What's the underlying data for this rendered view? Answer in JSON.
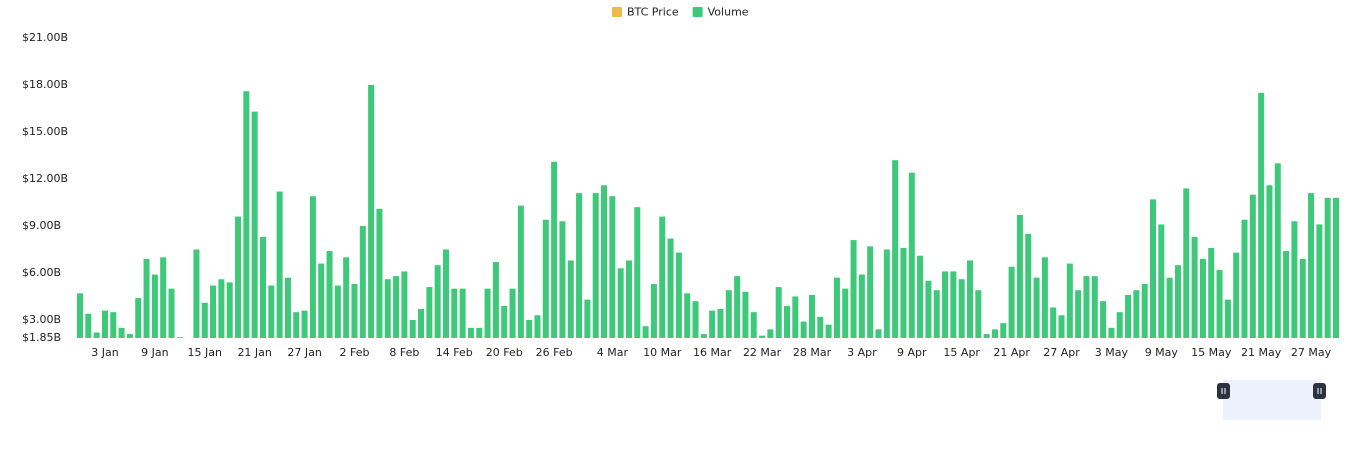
{
  "chart_data": {
    "type": "bar",
    "series": [
      {
        "name": "BTC Price",
        "color": "#f0b94a",
        "hidden": true
      },
      {
        "name": "Volume",
        "color": "#3ec87a",
        "values": [
          4.7,
          3.4,
          2.2,
          3.6,
          3.5,
          2.5,
          2.1,
          4.4,
          6.9,
          5.9,
          7.0,
          5.0,
          1.9,
          1.85,
          7.5,
          4.1,
          5.2,
          5.6,
          5.4,
          9.6,
          17.6,
          16.3,
          8.3,
          5.2,
          11.2,
          5.7,
          3.5,
          3.6,
          10.9,
          6.6,
          7.4,
          5.2,
          7.0,
          5.3,
          9.0,
          18.0,
          10.1,
          5.6,
          5.8,
          6.1,
          3.0,
          3.7,
          5.1,
          6.5,
          7.5,
          5.0,
          5.0,
          2.5,
          2.5,
          5.0,
          6.7,
          3.9,
          5.0,
          10.3,
          3.0,
          3.3,
          9.4,
          13.1,
          9.3,
          6.8,
          11.1,
          4.3,
          11.1,
          11.6,
          10.9,
          6.3,
          6.8,
          10.2,
          2.6,
          5.3,
          9.6,
          8.2,
          7.3,
          4.7,
          4.2,
          2.1,
          3.6,
          3.7,
          4.9,
          5.8,
          4.8,
          3.5,
          2.0,
          2.4,
          5.1,
          3.9,
          4.5,
          2.9,
          4.6,
          3.2,
          2.7,
          5.7,
          5.0,
          8.1,
          5.9,
          7.7,
          2.4,
          7.5,
          13.2,
          7.6,
          12.4,
          7.1,
          5.5,
          4.9,
          6.1,
          6.1,
          5.6,
          6.8,
          4.9,
          2.1,
          2.4,
          2.8,
          6.4,
          9.7,
          8.5,
          5.7,
          7.0,
          3.8,
          3.3,
          6.6,
          4.9,
          5.8,
          5.8,
          4.2,
          2.5,
          3.5,
          4.6,
          4.9,
          5.3,
          10.7,
          9.1,
          5.7,
          6.5,
          11.4,
          8.3,
          6.9,
          7.6,
          6.2,
          4.3,
          7.3,
          9.4,
          11.0,
          17.5,
          11.6,
          13.0,
          7.4,
          9.3,
          6.9,
          11.1,
          9.1,
          10.8,
          10.8
        ]
      }
    ],
    "categories": [
      null,
      null,
      null,
      "3 Jan",
      null,
      null,
      null,
      null,
      null,
      "9 Jan",
      null,
      null,
      null,
      null,
      null,
      "15 Jan",
      null,
      null,
      null,
      null,
      null,
      "21 Jan",
      null,
      null,
      null,
      null,
      null,
      "27 Jan",
      null,
      null,
      null,
      null,
      null,
      "2 Feb",
      null,
      null,
      null,
      null,
      null,
      "8 Feb",
      null,
      null,
      null,
      null,
      null,
      "14 Feb",
      null,
      null,
      null,
      null,
      null,
      "20 Feb",
      null,
      null,
      null,
      null,
      null,
      "26 Feb",
      null,
      null,
      null,
      null,
      null,
      null,
      "4 Mar",
      null,
      null,
      null,
      null,
      null,
      "10 Mar",
      null,
      null,
      null,
      null,
      null,
      "16 Mar",
      null,
      null,
      null,
      null,
      null,
      "22 Mar",
      null,
      null,
      null,
      null,
      null,
      "28 Mar",
      null,
      null,
      null,
      null,
      null,
      "3 Apr",
      null,
      null,
      null,
      null,
      null,
      "9 Apr",
      null,
      null,
      null,
      null,
      null,
      "15 Apr",
      null,
      null,
      null,
      null,
      null,
      "21 Apr",
      null,
      null,
      null,
      null,
      null,
      "27 Apr",
      null,
      null,
      null,
      null,
      null,
      "3 May",
      null,
      null,
      null,
      null,
      null,
      "9 May",
      null,
      null,
      null,
      null,
      null,
      "15 May",
      null,
      null,
      null,
      null,
      null,
      "21 May",
      null,
      null,
      null,
      null,
      null,
      "27 May",
      null,
      null,
      null
    ],
    "ylim": [
      1.85,
      21
    ],
    "yticks": [
      {
        "value": 1.85,
        "label": "$1.85B"
      },
      {
        "value": 3,
        "label": "$3.00B"
      },
      {
        "value": 6,
        "label": "$6.00B"
      },
      {
        "value": 9,
        "label": "$9.00B"
      },
      {
        "value": 12,
        "label": "$12.00B"
      },
      {
        "value": 15,
        "label": "$15.00B"
      },
      {
        "value": 18,
        "label": "$18.00B"
      },
      {
        "value": 21,
        "label": "$21.00B"
      }
    ],
    "grid": false,
    "legend": "top"
  }
}
